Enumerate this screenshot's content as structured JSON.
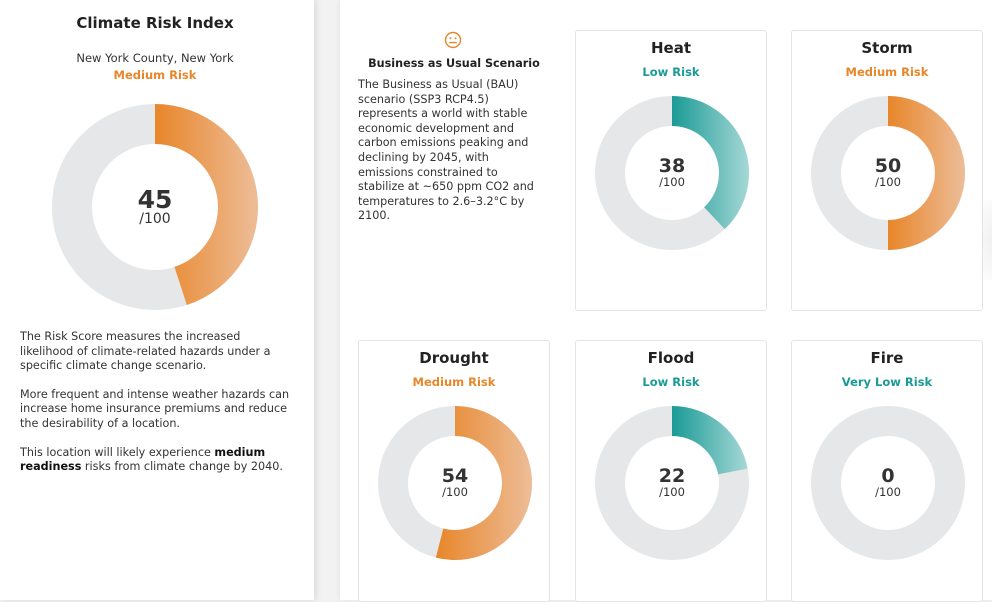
{
  "colors": {
    "medium": "#E8862A",
    "low": "#1A9A95",
    "track": "#E6E7E8"
  },
  "summary": {
    "title": "Climate Risk Index",
    "location": "New York County, New York",
    "risk_label": "Medium Risk",
    "risk_level": "medium",
    "score": 45,
    "max_label": "/100",
    "descriptions": [
      "The Risk Score measures the increased likelihood of climate-related hazards under a specific climate change scenario.",
      "More frequent and intense weather hazards can increase home insurance premiums and reduce the desirability of a location."
    ],
    "readiness": {
      "prefix": "This location will likely experience ",
      "bold": "medium readiness",
      "suffix": " risks from climate change by 2040."
    }
  },
  "scenario": {
    "icon": "neutral-face-icon",
    "title": "Business as Usual Scenario",
    "description": "The Business as Usual (BAU) scenario (SSP3 RCP4.5) represents a world with stable economic development and carbon emissions peaking and declining by 2045, with emissions constrained to stabilize at ~650 ppm CO2 and temperatures to 2.6–3.2°C by 2100."
  },
  "hazards": [
    {
      "name": "Heat",
      "risk_label": "Low Risk",
      "risk_level": "low",
      "score": 38,
      "max_label": "/100"
    },
    {
      "name": "Storm",
      "risk_label": "Medium Risk",
      "risk_level": "medium",
      "score": 50,
      "max_label": "/100"
    },
    {
      "name": "Drought",
      "risk_label": "Medium Risk",
      "risk_level": "medium",
      "score": 54,
      "max_label": "/100"
    },
    {
      "name": "Flood",
      "risk_label": "Low Risk",
      "risk_level": "low",
      "score": 22,
      "max_label": "/100"
    },
    {
      "name": "Fire",
      "risk_label": "Very Low Risk",
      "risk_level": "low",
      "score": 0,
      "max_label": "/100"
    }
  ]
}
